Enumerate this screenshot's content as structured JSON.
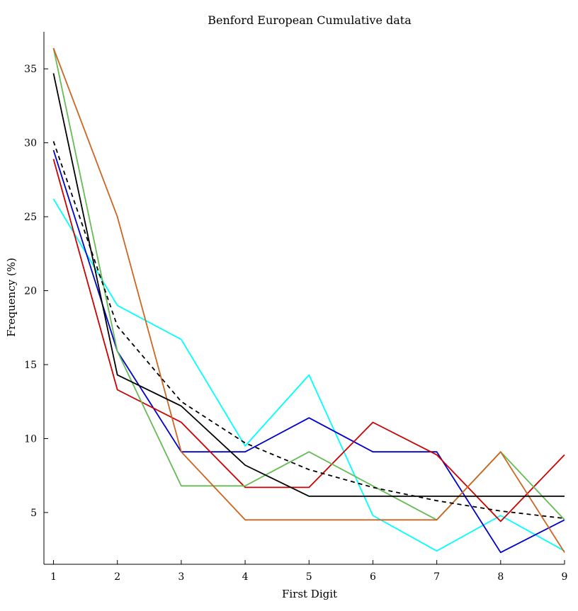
{
  "chart_data": {
    "type": "line",
    "title": "Benford European Cumulative data",
    "xlabel": "First Digit",
    "ylabel": "Frequency (%)",
    "x": [
      1,
      2,
      3,
      4,
      5,
      6,
      7,
      8,
      9
    ],
    "xlim": [
      0.85,
      9.0
    ],
    "ylim": [
      1.5,
      37.5
    ],
    "xticks": [
      "1",
      "2",
      "3",
      "4",
      "5",
      "6",
      "7",
      "8",
      "9"
    ],
    "yticks": [
      "5",
      "10",
      "15",
      "20",
      "25",
      "30",
      "35"
    ],
    "grid": false,
    "series": [
      {
        "color": "#00ffff",
        "dash": false,
        "values": [
          26.2,
          19.0,
          16.7,
          9.5,
          14.3,
          4.8,
          2.4,
          4.8,
          2.4
        ]
      },
      {
        "color": "#0000cc",
        "dash": false,
        "values": [
          29.5,
          15.9,
          9.1,
          9.1,
          11.4,
          9.1,
          9.1,
          2.3,
          4.5
        ]
      },
      {
        "color": "#cc0000",
        "dash": false,
        "values": [
          28.9,
          13.3,
          11.1,
          6.7,
          6.7,
          11.1,
          8.9,
          4.4,
          8.9
        ]
      },
      {
        "color": "#66bb55",
        "dash": false,
        "values": [
          36.4,
          15.9,
          6.8,
          6.8,
          9.1,
          6.8,
          4.5,
          9.1,
          4.5
        ]
      },
      {
        "color": "#cc6622",
        "dash": false,
        "values": [
          36.4,
          25.0,
          9.1,
          4.5,
          4.5,
          4.5,
          4.5,
          9.1,
          2.3
        ]
      },
      {
        "color": "#000000",
        "dash": false,
        "values": [
          34.7,
          14.3,
          12.2,
          8.2,
          6.1,
          6.1,
          6.1,
          6.1,
          6.1
        ]
      },
      {
        "color": "#000000",
        "dash": true,
        "values": [
          30.1,
          17.6,
          12.5,
          9.7,
          7.9,
          6.7,
          5.8,
          5.1,
          4.6
        ]
      }
    ]
  }
}
